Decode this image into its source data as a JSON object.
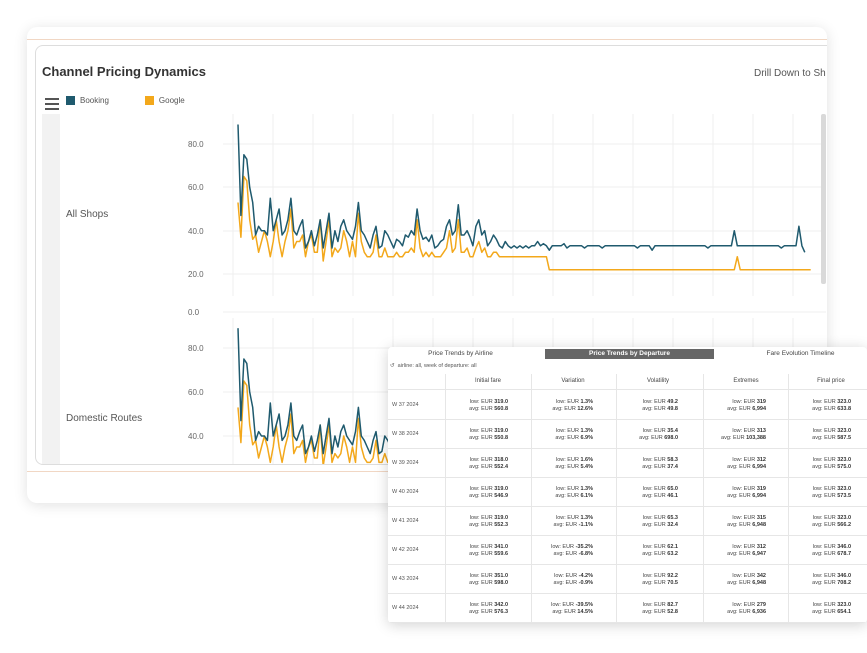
{
  "dashboard": {
    "title": "Channel Pricing Dynamics",
    "drill_label": "Drill Down to Sh",
    "legend": [
      {
        "label": "Booking",
        "color": "#1f5a6e"
      },
      {
        "label": "Google",
        "color": "#f3a81b"
      }
    ],
    "row_labels": [
      "All Shops",
      "Domestic Routes"
    ]
  },
  "chart_data": [
    {
      "type": "line",
      "title": "",
      "row_label": "All Shops",
      "y_ticks": [
        "80.0",
        "60.0",
        "40.0",
        "20.0"
      ],
      "ylim": [
        15,
        90
      ],
      "series": [
        {
          "name": "Booking",
          "color": "#1f5a6e",
          "values": [
            89,
            47,
            75,
            73,
            60,
            53,
            38,
            42,
            40,
            40,
            38,
            55,
            40,
            45,
            50,
            38,
            40,
            45,
            55,
            40,
            38,
            42,
            45,
            32,
            35,
            40,
            33,
            38,
            45,
            32,
            40,
            48,
            32,
            40,
            35,
            42,
            45,
            40,
            38,
            36,
            42,
            53,
            40,
            38,
            35,
            32,
            38,
            42,
            32,
            33,
            40,
            38,
            35,
            32,
            36,
            35,
            33,
            38,
            37,
            40,
            38,
            50,
            40,
            36,
            37,
            35,
            38,
            32,
            33,
            35,
            36,
            42,
            45,
            38,
            40,
            52,
            38,
            38,
            40,
            37,
            33,
            42,
            45,
            38,
            40,
            33,
            35,
            38,
            36,
            33,
            32,
            35,
            33,
            32,
            33,
            32,
            33,
            32,
            33,
            32,
            33,
            33,
            35,
            33,
            34,
            33,
            31,
            33,
            33,
            33,
            33,
            34,
            32,
            33,
            33,
            33,
            33,
            33,
            32,
            33,
            33,
            33,
            33,
            33,
            32,
            33,
            33,
            33,
            33,
            33,
            33,
            33,
            33,
            33,
            33,
            33,
            32,
            33,
            33,
            33,
            33,
            31,
            33,
            33,
            33,
            33,
            33,
            33,
            33,
            33,
            33,
            33,
            33,
            33,
            33,
            33,
            33,
            33,
            33,
            33,
            32,
            33,
            33,
            33,
            33,
            33,
            33,
            33,
            33,
            40,
            33,
            33,
            33,
            33,
            33,
            33,
            33,
            33,
            33,
            33,
            33,
            33,
            33,
            33,
            33,
            32,
            33,
            33,
            33,
            33,
            33,
            42,
            33,
            30
          ]
        },
        {
          "name": "Google",
          "color": "#f3a81b",
          "values": [
            53,
            37,
            65,
            63,
            45,
            36,
            38,
            30,
            35,
            40,
            35,
            28,
            35,
            45,
            35,
            28,
            35,
            40,
            50,
            32,
            35,
            35,
            38,
            28,
            35,
            38,
            30,
            30,
            45,
            26,
            35,
            45,
            28,
            32,
            30,
            32,
            40,
            35,
            28,
            35,
            28,
            48,
            35,
            30,
            28,
            28,
            30,
            38,
            28,
            28,
            32,
            28,
            28,
            28,
            30,
            28,
            28,
            30,
            30,
            32,
            30,
            45,
            32,
            28,
            30,
            28,
            30,
            28,
            28,
            28,
            30,
            32,
            40,
            30,
            32,
            45,
            30,
            30,
            32,
            28,
            28,
            32,
            35,
            30,
            32,
            28,
            28,
            30,
            30,
            28,
            28,
            28,
            28,
            28,
            28,
            28,
            28,
            28,
            28,
            28,
            28,
            28,
            28,
            28,
            28,
            28,
            22,
            22,
            22,
            22,
            22,
            22,
            22,
            22,
            22,
            22,
            22,
            22,
            22,
            22,
            22,
            22,
            22,
            22,
            22,
            22,
            22,
            22,
            22,
            22,
            22,
            22,
            22,
            22,
            22,
            22,
            22,
            22,
            22,
            22,
            22,
            22,
            22,
            22,
            22,
            22,
            22,
            22,
            22,
            22,
            22,
            22,
            22,
            22,
            22,
            22,
            22,
            22,
            22,
            22,
            22,
            22,
            22,
            22,
            22,
            22,
            22,
            22,
            22,
            22,
            28,
            22,
            22,
            22,
            22,
            22,
            22,
            22,
            22,
            22,
            22,
            22,
            22,
            22,
            22,
            22,
            22,
            22,
            22,
            22,
            22,
            22,
            22,
            22,
            22,
            22
          ]
        }
      ]
    },
    {
      "type": "line",
      "title": "",
      "row_label": "Domestic Routes",
      "y_ticks": [
        "0.0",
        "80.0",
        "60.0",
        "40.0"
      ],
      "ylim": [
        25,
        100
      ],
      "series": [
        {
          "name": "Booking",
          "color": "#1f5a6e",
          "values": [
            89,
            47,
            75,
            73,
            60,
            53,
            38,
            42,
            40,
            40,
            38,
            55,
            40,
            45,
            50,
            38,
            40,
            45,
            55,
            40,
            38,
            42,
            45,
            32,
            35,
            40,
            33,
            38,
            45,
            32,
            40,
            48,
            32,
            40,
            35,
            42,
            45,
            40,
            38,
            36,
            42,
            53,
            40,
            38,
            35,
            32,
            38,
            42,
            32,
            33,
            40,
            38,
            35,
            32,
            36,
            35,
            33,
            38,
            37,
            40,
            38,
            50,
            40,
            36,
            37,
            35,
            38,
            32,
            33,
            35,
            36,
            42,
            45,
            38,
            40,
            52,
            38,
            38,
            40,
            37,
            33,
            42,
            45,
            38,
            40,
            33,
            35,
            38,
            36,
            33,
            32,
            35,
            33,
            32,
            33,
            32,
            33,
            32,
            33,
            32,
            33,
            33,
            35,
            33,
            34,
            33,
            31,
            33,
            33,
            33
          ]
        },
        {
          "name": "Google",
          "color": "#f3a81b",
          "values": [
            53,
            37,
            65,
            63,
            45,
            36,
            38,
            30,
            35,
            40,
            35,
            28,
            35,
            45,
            35,
            28,
            35,
            40,
            50,
            32,
            35,
            35,
            38,
            28,
            35,
            38,
            30,
            30,
            45,
            26,
            35,
            45,
            28,
            32,
            30,
            32,
            40,
            35,
            28,
            35,
            28,
            48,
            35,
            30,
            28,
            28,
            30,
            38,
            28,
            28,
            32,
            28,
            28,
            28,
            30,
            28,
            28,
            30,
            30,
            32,
            30,
            45,
            32,
            28,
            30,
            28,
            30,
            28,
            28,
            28,
            30,
            32,
            40,
            30,
            32,
            45,
            30,
            30,
            32,
            28,
            28,
            32,
            35,
            30,
            32,
            28,
            28,
            30,
            30,
            28,
            28,
            28,
            28,
            28,
            28,
            28,
            28,
            28,
            28,
            28,
            28,
            28,
            28,
            28,
            28,
            28,
            22,
            22,
            22,
            22
          ]
        }
      ]
    }
  ],
  "table": {
    "tabs": [
      {
        "label": "Price Trends by Airline",
        "active": false
      },
      {
        "label": "Price Trends by Departure",
        "active": true
      },
      {
        "label": "Fare Evolution Timeline",
        "active": false
      }
    ],
    "filter": "airline: all, week of departure: all",
    "columns": [
      "Initial fare",
      "Variation",
      "Volatility",
      "Extremes",
      "Final price"
    ],
    "rows": [
      {
        "week": "W 37 2024",
        "cells": [
          [
            "low: EUR 319.0",
            "avg: EUR 560.8"
          ],
          [
            "low: EUR 1.3%",
            "avg: EUR 12.6%"
          ],
          [
            "low: EUR 49.2",
            "avg: EUR 49.8"
          ],
          [
            "low: EUR 319",
            "avg: EUR 6,994"
          ],
          [
            "low: EUR 323.0",
            "avg: EUR 633.8"
          ]
        ]
      },
      {
        "week": "W 38 2024",
        "cells": [
          [
            "low: EUR 319.0",
            "avg: EUR 550.8"
          ],
          [
            "low: EUR 1.3%",
            "avg: EUR 6.9%"
          ],
          [
            "low: EUR 35.4",
            "avg: EUR 698.0"
          ],
          [
            "low: EUR 313",
            "avg: EUR 103,388"
          ],
          [
            "low: EUR 323.0",
            "avg: EUR 587.5"
          ]
        ]
      },
      {
        "week": "W 39 2024",
        "cells": [
          [
            "low: EUR 318.0",
            "avg: EUR 552.4"
          ],
          [
            "low: EUR 1.6%",
            "avg: EUR 5.4%"
          ],
          [
            "low: EUR 58.3",
            "avg: EUR 37.4"
          ],
          [
            "low: EUR 312",
            "avg: EUR 6,994"
          ],
          [
            "low: EUR 323.0",
            "avg: EUR 575.0"
          ]
        ]
      },
      {
        "week": "W 40 2024",
        "cells": [
          [
            "low: EUR 319.0",
            "avg: EUR 546.9"
          ],
          [
            "low: EUR 1.3%",
            "avg: EUR 6.1%"
          ],
          [
            "low: EUR 65.0",
            "avg: EUR 46.1"
          ],
          [
            "low: EUR 319",
            "avg: EUR 6,994"
          ],
          [
            "low: EUR 323.0",
            "avg: EUR 573.5"
          ]
        ]
      },
      {
        "week": "W 41 2024",
        "cells": [
          [
            "low: EUR 319.0",
            "avg: EUR 552.3"
          ],
          [
            "low: EUR 1.3%",
            "avg: EUR -1.1%"
          ],
          [
            "low: EUR 65.3",
            "avg: EUR 32.4"
          ],
          [
            "low: EUR 315",
            "avg: EUR 6,948"
          ],
          [
            "low: EUR 323.0",
            "avg: EUR 566.2"
          ]
        ]
      },
      {
        "week": "W 42 2024",
        "cells": [
          [
            "low: EUR 341.0",
            "avg: EUR 559.6"
          ],
          [
            "low: EUR -35.2%",
            "avg: EUR -6.8%"
          ],
          [
            "low: EUR 62.1",
            "avg: EUR 63.2"
          ],
          [
            "low: EUR 312",
            "avg: EUR 6,947"
          ],
          [
            "low: EUR 346.0",
            "avg: EUR 678.7"
          ]
        ]
      },
      {
        "week": "W 43 2024",
        "cells": [
          [
            "low: EUR 351.0",
            "avg: EUR 598.0"
          ],
          [
            "low: EUR -4.2%",
            "avg: EUR -0.9%"
          ],
          [
            "low: EUR 92.2",
            "avg: EUR 70.5"
          ],
          [
            "low: EUR 342",
            "avg: EUR 6,948"
          ],
          [
            "low: EUR 346.0",
            "avg: EUR 708.2"
          ]
        ]
      },
      {
        "week": "W 44 2024",
        "cells": [
          [
            "low: EUR 342.0",
            "avg: EUR 576.3"
          ],
          [
            "low: EUR -39.5%",
            "avg: EUR 14.5%"
          ],
          [
            "low: EUR 82.7",
            "avg: EUR 52.8"
          ],
          [
            "low: EUR 279",
            "avg: EUR 6,936"
          ],
          [
            "low: EUR 323.0",
            "avg: EUR 654.1"
          ]
        ]
      }
    ]
  }
}
